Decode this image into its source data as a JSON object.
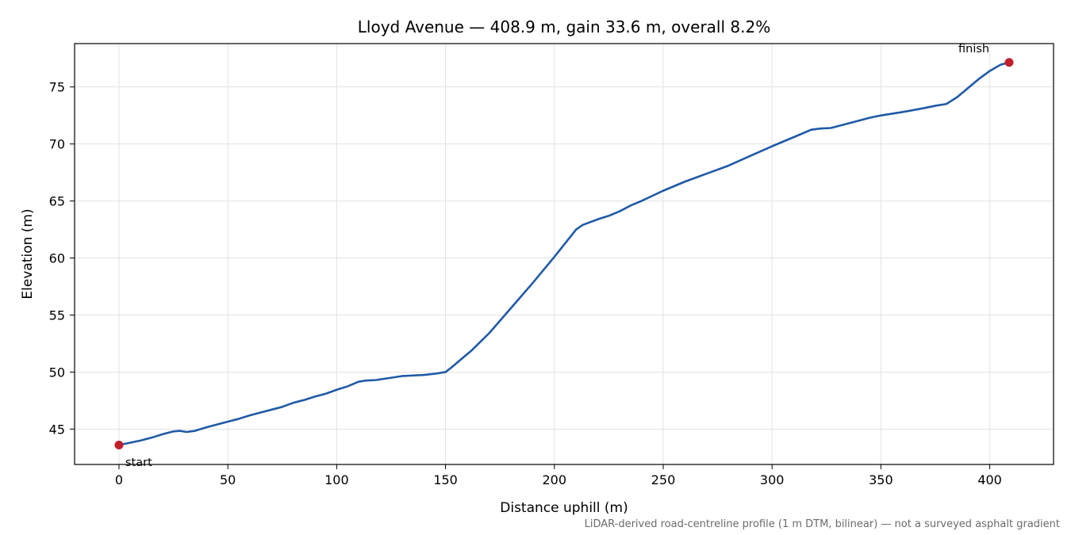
{
  "chart_data": {
    "type": "line",
    "title": "Lloyd Avenue — 408.9 m, gain 33.6 m, overall 8.2%",
    "xlabel": "Distance uphill (m)",
    "ylabel": "Elevation (m)",
    "xlim": [
      -20.4,
      429.3
    ],
    "ylim": [
      41.9,
      78.8
    ],
    "x_ticks": [
      0,
      50,
      100,
      150,
      200,
      250,
      300,
      350,
      400
    ],
    "y_ticks": [
      45,
      50,
      55,
      60,
      65,
      70,
      75
    ],
    "grid": true,
    "line_color": "#1f5aa6",
    "marker_color": "#c0202a",
    "series": [
      {
        "x": [
          0,
          5,
          10,
          15,
          20,
          25,
          28,
          31,
          35,
          40,
          45,
          50,
          55,
          60,
          65,
          70,
          75,
          80,
          85,
          90,
          95,
          100,
          105,
          110,
          113,
          118,
          125,
          130,
          135,
          140,
          145,
          150,
          153,
          157,
          162,
          170,
          180,
          190,
          200,
          210,
          213,
          220,
          225,
          230,
          235,
          240,
          250,
          260,
          270,
          280,
          290,
          300,
          310,
          318,
          322,
          327,
          335,
          345,
          350,
          360,
          370,
          375,
          380,
          385,
          390,
          395,
          400,
          405,
          408.9
        ],
        "y": [
          43.6,
          43.8,
          44.0,
          44.25,
          44.55,
          44.8,
          44.85,
          44.75,
          44.85,
          45.15,
          45.4,
          45.65,
          45.9,
          46.2,
          46.45,
          46.7,
          46.95,
          47.3,
          47.55,
          47.85,
          48.1,
          48.45,
          48.75,
          49.15,
          49.25,
          49.3,
          49.5,
          49.65,
          49.7,
          49.75,
          49.85,
          50.0,
          50.45,
          51.1,
          51.9,
          53.4,
          55.6,
          57.8,
          60.1,
          62.5,
          62.9,
          63.4,
          63.7,
          64.1,
          64.6,
          65.0,
          65.9,
          66.7,
          67.4,
          68.1,
          68.95,
          69.8,
          70.6,
          71.25,
          71.35,
          71.4,
          71.8,
          72.3,
          72.5,
          72.8,
          73.15,
          73.35,
          73.5,
          74.1,
          74.9,
          75.7,
          76.4,
          76.95,
          77.15
        ]
      }
    ],
    "annotations": [
      {
        "label": "start",
        "x": 0,
        "y": 43.6
      },
      {
        "label": "finish",
        "x": 408.9,
        "y": 77.15
      }
    ],
    "footnote": "LiDAR-derived road-centreline profile (1 m DTM, bilinear) — not a surveyed asphalt gradient"
  }
}
